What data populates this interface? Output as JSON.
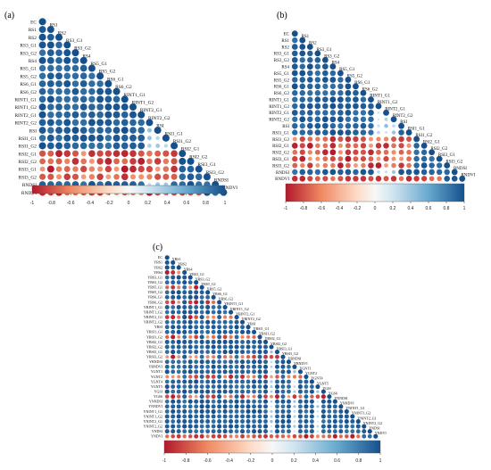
{
  "chart_data": [
    {
      "panel_label": "(a)",
      "type": "heatmap",
      "style": "lower-triangle correlation dot matrix",
      "title": "",
      "colorbar": {
        "ticks": [
          -1,
          -0.8,
          -0.6,
          -0.4,
          -0.2,
          0,
          0.2,
          0.4,
          0.6,
          0.8,
          1
        ],
        "tick_labels": [
          "-1",
          "-0.8",
          "-0.6",
          "-0.4",
          "-0.2",
          "0",
          "0.2",
          "0.4",
          "0.6",
          "0.8",
          "1"
        ],
        "range": [
          -1,
          1
        ]
      },
      "variables": [
        "EC",
        "RS1",
        "RS2",
        "RS3_G1",
        "RS3_G2",
        "RS4",
        "RS5_G1",
        "RS5_G2",
        "RS6_G1",
        "RS6_G2",
        "RINT1_G1",
        "RINT1_G2",
        "RINT2_G1",
        "RINT2_G2",
        "RSI",
        "RSI1_G1",
        "RSI1_G2",
        "RSI2_G1",
        "RSI2_G2",
        "RSI3_G1",
        "RSI3_G2",
        "RNDSI",
        "RNDVI"
      ],
      "diagonal_labels": [
        "RS1",
        "RS2",
        "RS3_G1",
        "RS3_G2",
        "RS4",
        "RS5_G1",
        "RS5_G2",
        "RS6_G1",
        "RS6_G2",
        "RINT1_G1",
        "RINT1_G2",
        "RINT2_G1",
        "RINT2_G2",
        "RSI",
        "RSI1_G1",
        "RSI1_G2",
        "RSI2_G1",
        "RSI2_G2",
        "RSI3_G1",
        "RSI3_G2",
        "RNDSI",
        "RNDVI"
      ]
    },
    {
      "panel_label": "(b)",
      "type": "heatmap",
      "style": "lower-triangle correlation dot matrix",
      "title": "",
      "colorbar": {
        "ticks": [
          -1,
          -0.8,
          -0.6,
          -0.4,
          -0.2,
          0,
          0.2,
          0.4,
          0.6,
          0.8,
          1
        ],
        "tick_labels": [
          "-1",
          "-0.8",
          "-0.6",
          "-0.4",
          "-0.2",
          "0",
          "0.2",
          "0.4",
          "0.6",
          "0.8",
          "1"
        ],
        "range": [
          -1,
          1
        ]
      },
      "variables": [
        "EC",
        "RS1",
        "RS2",
        "RS3_G1",
        "RS3_G2",
        "RS4",
        "RS5_G1",
        "RS5_G2",
        "RS6_G1",
        "RS6_G2",
        "RINT1_G1",
        "RINT1_G2",
        "RINT2_G1",
        "RINT2_G2",
        "RSI",
        "RSI1_G1",
        "RSI1_G2",
        "RSI2_G1",
        "RSI2_G2",
        "RSI3_G1",
        "RSI3_G2",
        "RNDSI",
        "RNDVI"
      ],
      "diagonal_labels": [
        "RS1",
        "RS2",
        "RS3_G1",
        "RS3_G2",
        "RS4",
        "RS5_G1",
        "RS5_G2",
        "RS6_G1",
        "RS6_G2",
        "RINT1_G1",
        "RINT1_G2",
        "RINT2_G1",
        "RINT2_G2",
        "RSI",
        "RSI1_G1",
        "RSI1_G2",
        "RSI2_G1",
        "RSI2_G2",
        "RSI3_G1",
        "RSI3_G2",
        "RNDSI",
        "RNDVI"
      ]
    },
    {
      "panel_label": "(c)",
      "type": "heatmap",
      "style": "lower-triangle correlation dot matrix",
      "title": "",
      "colorbar": {
        "ticks": [
          -1,
          -0.8,
          -0.6,
          -0.4,
          -0.2,
          0,
          0.2,
          0.4,
          0.6,
          0.8,
          1
        ],
        "tick_labels": [
          "-1",
          "-0.8",
          "-0.6",
          "-0.4",
          "-0.2",
          "0",
          "0.2",
          "0.4",
          "0.6",
          "0.8",
          "1"
        ],
        "range": [
          -1,
          1
        ]
      },
      "variables": [
        "EC",
        "YBS1",
        "YBS2",
        "YBS4",
        "YBS3_G1",
        "YBS3_G2",
        "YBS5_G1",
        "YBS5_G2",
        "YBS6_G1",
        "YBS6_G2",
        "YBINT1_G1",
        "YBINT1_G2",
        "YBINT2_G1",
        "YBINT2_G2",
        "YBSI",
        "YBSI1_G1",
        "YBSI1_G2",
        "YBSI2_G1",
        "YBSI2_G2",
        "YBSI3_G1",
        "YBSI3_G2",
        "YBNDSI",
        "YBNDVI",
        "YGNT1",
        "YGNT2",
        "YGNT4",
        "YGNT5",
        "YGSI",
        "YGS6",
        "YNNDSI",
        "YNNDVI",
        "YNINT1_G1",
        "YNINT1_G2",
        "YNINT2_G1",
        "YNINT2_G2",
        "YNDSI",
        "YNDVI"
      ],
      "diagonal_labels": [
        "YBS1",
        "YBS2",
        "YBS4",
        "YBS3_G1",
        "YBS3_G2",
        "YBS5_G1",
        "YBS5_G2",
        "YBS6_G1",
        "YBS6_G2",
        "YBINT1_G1",
        "YBINT1_G2",
        "YBINT2_G1",
        "YBINT2_G2",
        "YBSI",
        "YBSI1_G1",
        "YBSI1_G2",
        "YBSI2_G1",
        "YBSI2_G2",
        "YBSI3_G1",
        "YBSI3_G2",
        "YBNDSI",
        "YBNDVI",
        "YGNT1",
        "YGNT2",
        "YGNT4",
        "YGNT5",
        "YGSI",
        "YGS6",
        "YNNDSI",
        "YNNDVI",
        "YNINT1_G1",
        "YNINT1_G2",
        "YNINT2_G1",
        "YNINT2_G2",
        "YNDSI",
        "YNDVI"
      ]
    }
  ],
  "palette": {
    "negative_strong": "#b2182b",
    "negative_mid": "#ef8a62",
    "neutral_low": "#fddbc7",
    "neutral": "#f7f7f7",
    "positive_low": "#d1e5f0",
    "positive_mid": "#67a9cf",
    "positive_strong": "#15508d"
  }
}
